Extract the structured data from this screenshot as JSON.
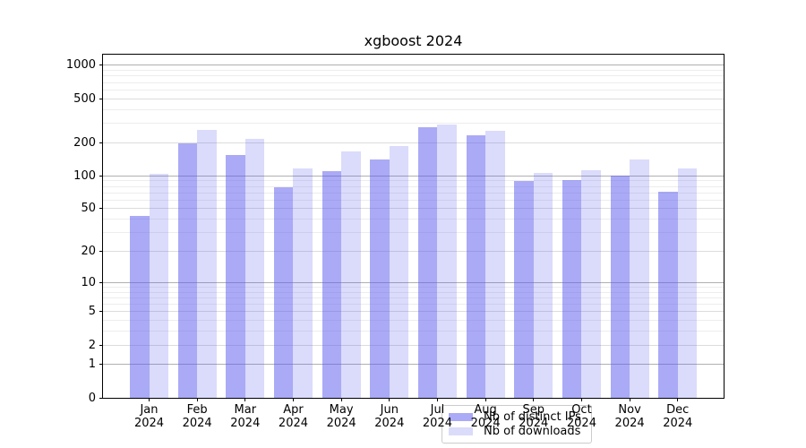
{
  "chart_data": {
    "type": "bar",
    "title": "xgboost 2024",
    "categories": [
      "Jan 2024",
      "Feb 2024",
      "Mar 2024",
      "Apr 2024",
      "May 2024",
      "Jun 2024",
      "Jul 2024",
      "Aug 2024",
      "Sep 2024",
      "Oct 2024",
      "Nov 2024",
      "Dec 2024"
    ],
    "series": [
      {
        "name": "Nb of distinct IPs",
        "fill": "rgba(85,85,238,0.5)",
        "legend_color": "#aaaaf7",
        "values": [
          43,
          199,
          154,
          78,
          111,
          141,
          275,
          233,
          90,
          92,
          101,
          72
        ]
      },
      {
        "name": "Nb of downloads",
        "fill": "rgba(85,85,238,0.21)",
        "legend_color": "#dbdbfa",
        "values": [
          105,
          260,
          215,
          116,
          168,
          185,
          291,
          255,
          107,
          112,
          140,
          116
        ]
      }
    ],
    "xlabel": "",
    "ylabel": "",
    "yscale": "log1p",
    "yticks": [
      0,
      1,
      2,
      5,
      10,
      20,
      50,
      100,
      200,
      500,
      1000
    ],
    "ylim": [
      0,
      1250
    ],
    "grid": true,
    "legend_position": "lower center"
  },
  "legend": {
    "items": [
      {
        "label": "Nb of distinct IPs"
      },
      {
        "label": "Nb of downloads"
      }
    ]
  },
  "colors": {
    "bar_base": "#5555ee",
    "grid_decade": "#b0b0b0",
    "grid_labeled": "#dcdcdc",
    "grid_minor": "#ededed"
  }
}
